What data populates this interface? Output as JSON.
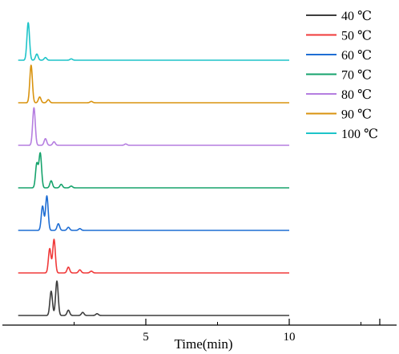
{
  "chart_data": {
    "type": "line",
    "title": "",
    "xlabel": "Time(min)",
    "ylabel": "",
    "xlim": [
      0,
      15
    ],
    "x_ticks": [
      5,
      10
    ],
    "x_tick_labels": [
      "5",
      "10"
    ],
    "legend_position": "top-right",
    "stacked_offset": true,
    "series": [
      {
        "name": "40 ℃",
        "color": "#3d3d3d",
        "x_end": 10.0,
        "peaks": [
          [
            1.7,
            0.55
          ],
          [
            1.9,
            0.78
          ],
          [
            2.3,
            0.12
          ],
          [
            2.8,
            0.07
          ],
          [
            3.3,
            0.04
          ]
        ]
      },
      {
        "name": "50 ℃",
        "color": "#f03a3a",
        "x_end": 10.0,
        "peaks": [
          [
            1.65,
            0.55
          ],
          [
            1.8,
            0.76
          ],
          [
            2.3,
            0.13
          ],
          [
            2.7,
            0.07
          ],
          [
            3.1,
            0.04
          ]
        ]
      },
      {
        "name": "60 ℃",
        "color": "#1f6ed4",
        "x_end": 10.0,
        "peaks": [
          [
            1.4,
            0.55
          ],
          [
            1.55,
            0.78
          ],
          [
            1.95,
            0.15
          ],
          [
            2.3,
            0.07
          ],
          [
            2.7,
            0.04
          ]
        ]
      },
      {
        "name": "70 ℃",
        "color": "#16a36c",
        "x_end": 10.0,
        "peaks": [
          [
            1.2,
            0.55
          ],
          [
            1.32,
            0.78
          ],
          [
            1.7,
            0.16
          ],
          [
            2.05,
            0.08
          ],
          [
            2.4,
            0.04
          ]
        ]
      },
      {
        "name": "80 ℃",
        "color": "#b57ee0",
        "x_end": 10.0,
        "peaks": [
          [
            1.1,
            0.85
          ],
          [
            1.5,
            0.15
          ],
          [
            1.8,
            0.08
          ],
          [
            4.3,
            0.03
          ]
        ]
      },
      {
        "name": "90 ℃",
        "color": "#d9930f",
        "x_end": 10.0,
        "peaks": [
          [
            1.0,
            0.85
          ],
          [
            1.3,
            0.13
          ],
          [
            1.6,
            0.07
          ],
          [
            3.1,
            0.03
          ]
        ]
      },
      {
        "name": "100 ℃",
        "color": "#1ec4c9",
        "x_end": 10.0,
        "peaks": [
          [
            0.9,
            0.85
          ],
          [
            1.2,
            0.14
          ],
          [
            1.5,
            0.06
          ],
          [
            2.4,
            0.03
          ]
        ]
      }
    ]
  }
}
